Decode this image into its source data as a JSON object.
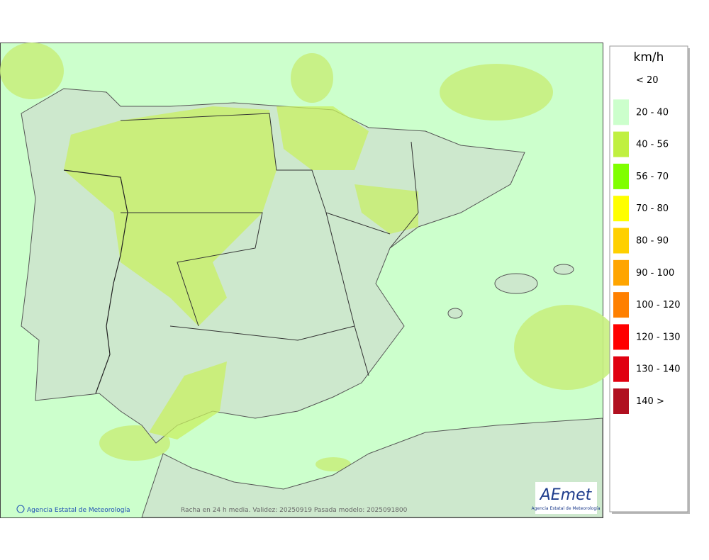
{
  "legend": {
    "title": "km/h",
    "items": [
      {
        "label": "< 20"
      },
      {
        "label": "20 - 40",
        "color": "#ccffcc"
      },
      {
        "label": "40 - 56",
        "color": "#c0f040"
      },
      {
        "label": "56 - 70",
        "color": "#80ff00"
      },
      {
        "label": "70 - 80",
        "color": "#ffff00"
      },
      {
        "label": "80 - 90",
        "color": "#ffd000"
      },
      {
        "label": "90 - 100",
        "color": "#ffa500"
      },
      {
        "label": "100 - 120",
        "color": "#ff8000"
      },
      {
        "label": "120 - 130",
        "color": "#ff0000"
      },
      {
        "label": "130 - 140",
        "color": "#e00010"
      },
      {
        "label": "140 >",
        "color": "#b01020"
      }
    ]
  },
  "map": {
    "copyright": "Agencia Estatal de Meteorología",
    "caption": "Racha en 24 h media. Validez: 20250919 Pasada modelo: 2025091800",
    "logo": {
      "name": "AEmet",
      "subtitle": "Agencia Estatal de Meteorología"
    }
  }
}
